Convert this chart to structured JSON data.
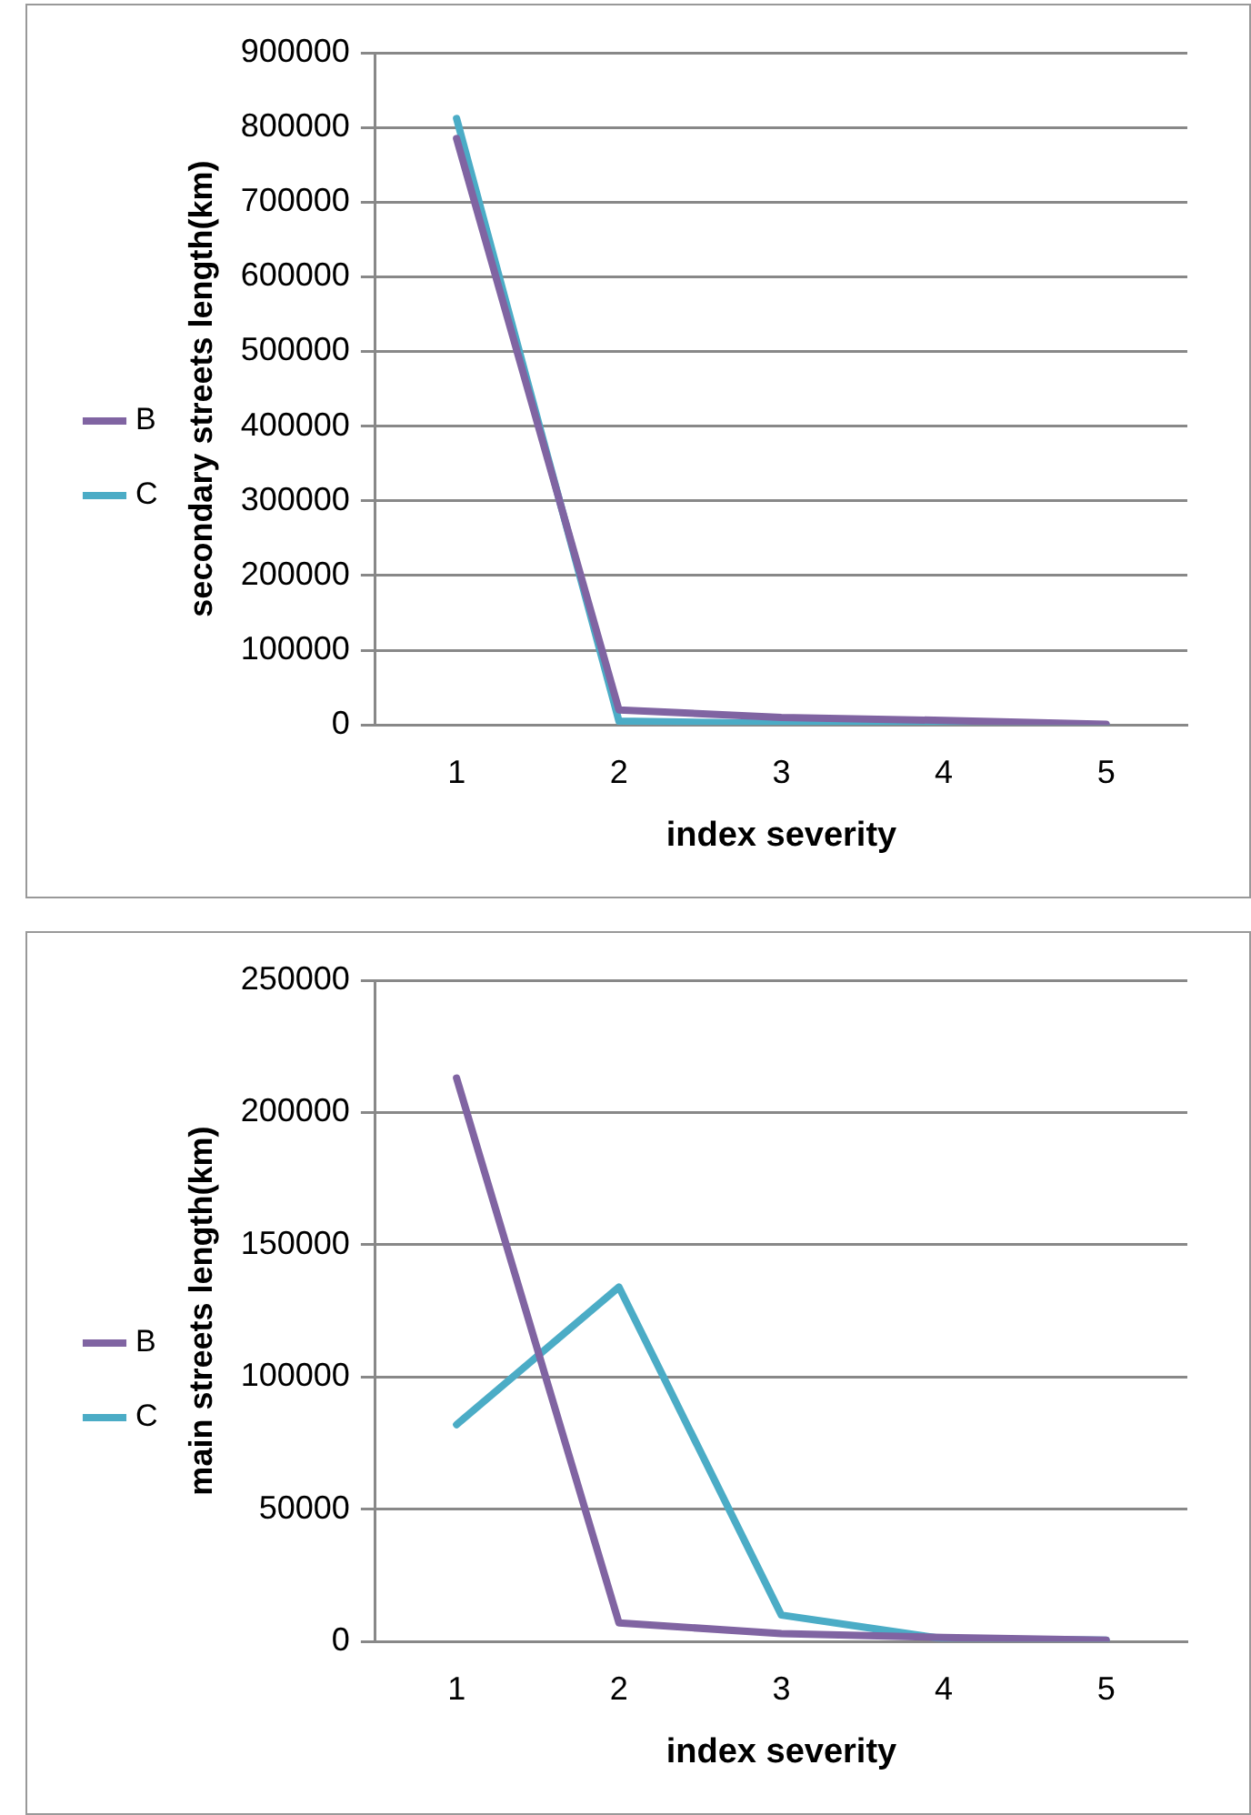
{
  "chart_data": [
    {
      "type": "line",
      "xlabel": "index severity",
      "ylabel": "secondary streets length(km)",
      "categories": [
        "1",
        "2",
        "3",
        "4",
        "5"
      ],
      "ylim": [
        0,
        900000
      ],
      "yticks": [
        0,
        100000,
        200000,
        300000,
        400000,
        500000,
        600000,
        700000,
        800000,
        900000
      ],
      "grid": "y",
      "legend": "left",
      "marker": "none",
      "series": [
        {
          "name": "B",
          "color": "#8064a2",
          "values": [
            785000,
            20000,
            10000,
            6000,
            1000
          ]
        },
        {
          "name": "C",
          "color": "#4bacc6",
          "values": [
            812000,
            5000,
            2000,
            1000,
            0
          ]
        }
      ]
    },
    {
      "type": "line",
      "xlabel": "index severity",
      "ylabel": "main streets length(km)",
      "categories": [
        "1",
        "2",
        "3",
        "4",
        "5"
      ],
      "ylim": [
        0,
        250000
      ],
      "yticks": [
        0,
        50000,
        100000,
        150000,
        200000,
        250000
      ],
      "grid": "y",
      "legend": "left",
      "marker": "none",
      "series": [
        {
          "name": "B",
          "color": "#8064a2",
          "values": [
            213000,
            7000,
            3000,
            1500,
            500
          ]
        },
        {
          "name": "C",
          "color": "#4bacc6",
          "values": [
            82000,
            134000,
            10000,
            1000,
            500
          ]
        }
      ]
    }
  ]
}
